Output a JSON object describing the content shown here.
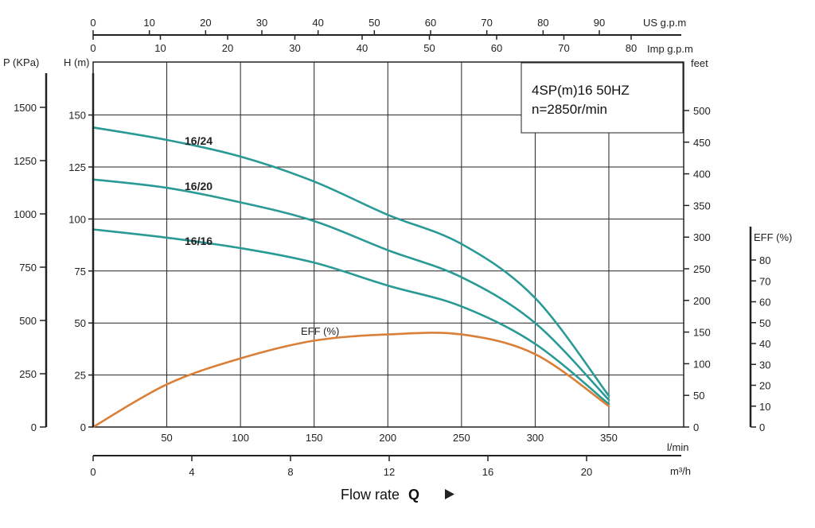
{
  "chart_data": {
    "type": "line",
    "title": "Flow rate",
    "title_bold": "Q",
    "info_box": {
      "line1": "4SP(m)16  50HZ",
      "line2": "n=2850r/min"
    },
    "colors": {
      "head_curves": "#2a9a96",
      "efficiency": "#d97f37",
      "grid": "#222222"
    },
    "x_primary": {
      "unit": "l/min",
      "range": [
        0,
        400
      ],
      "ticks": [
        50,
        100,
        150,
        200,
        250,
        300,
        350
      ]
    },
    "x_m3h": {
      "unit": "m³/h",
      "range": [
        0,
        24
      ],
      "ticks": [
        0,
        4,
        8,
        12,
        16,
        20
      ]
    },
    "x_us": {
      "unit": "US g.p.m",
      "range": [
        0,
        105.7
      ],
      "ticks": [
        0,
        10,
        20,
        30,
        40,
        50,
        60,
        70,
        80,
        90
      ]
    },
    "x_imp": {
      "unit": "Imp g.p.m",
      "range": [
        0,
        88
      ],
      "ticks": [
        0,
        10,
        20,
        30,
        40,
        50,
        60,
        70,
        80
      ]
    },
    "y_head_m": {
      "unit": "H (m)",
      "range": [
        0,
        175
      ],
      "ticks": [
        0,
        25,
        50,
        75,
        100,
        125,
        150
      ]
    },
    "y_pressure_kpa": {
      "unit": "P (KPa)",
      "range": [
        0,
        1715
      ],
      "ticks": [
        0,
        250,
        500,
        750,
        1000,
        1250,
        1500
      ]
    },
    "y_feet": {
      "unit": "feet",
      "range": [
        0,
        574
      ],
      "ticks": [
        0,
        50,
        100,
        150,
        200,
        250,
        300,
        350,
        400,
        450,
        500
      ]
    },
    "y_eff": {
      "unit": "EFF (%)",
      "range": [
        0,
        100
      ],
      "ticks": [
        0,
        10,
        20,
        30,
        40,
        50,
        60,
        70,
        80
      ]
    },
    "series": [
      {
        "name": "16/24",
        "axis": "head",
        "x": [
          0,
          50,
          100,
          150,
          200,
          250,
          300,
          350
        ],
        "y": [
          144,
          138,
          130,
          118,
          102,
          88,
          62,
          15
        ]
      },
      {
        "name": "16/20",
        "axis": "head",
        "x": [
          0,
          50,
          100,
          150,
          200,
          250,
          300,
          350
        ],
        "y": [
          119,
          115,
          108,
          99,
          85,
          72,
          50,
          13
        ]
      },
      {
        "name": "16/16",
        "axis": "head",
        "x": [
          0,
          50,
          100,
          150,
          200,
          250,
          300,
          350
        ],
        "y": [
          95,
          91,
          86,
          79,
          68,
          58,
          40,
          11
        ]
      },
      {
        "name": "EFF (%)",
        "axis": "efficiency",
        "x": [
          0,
          50,
          100,
          150,
          200,
          250,
          300,
          350
        ],
        "y": [
          0,
          20.5,
          33,
          41.5,
          44.5,
          44.5,
          35,
          10
        ]
      }
    ]
  }
}
